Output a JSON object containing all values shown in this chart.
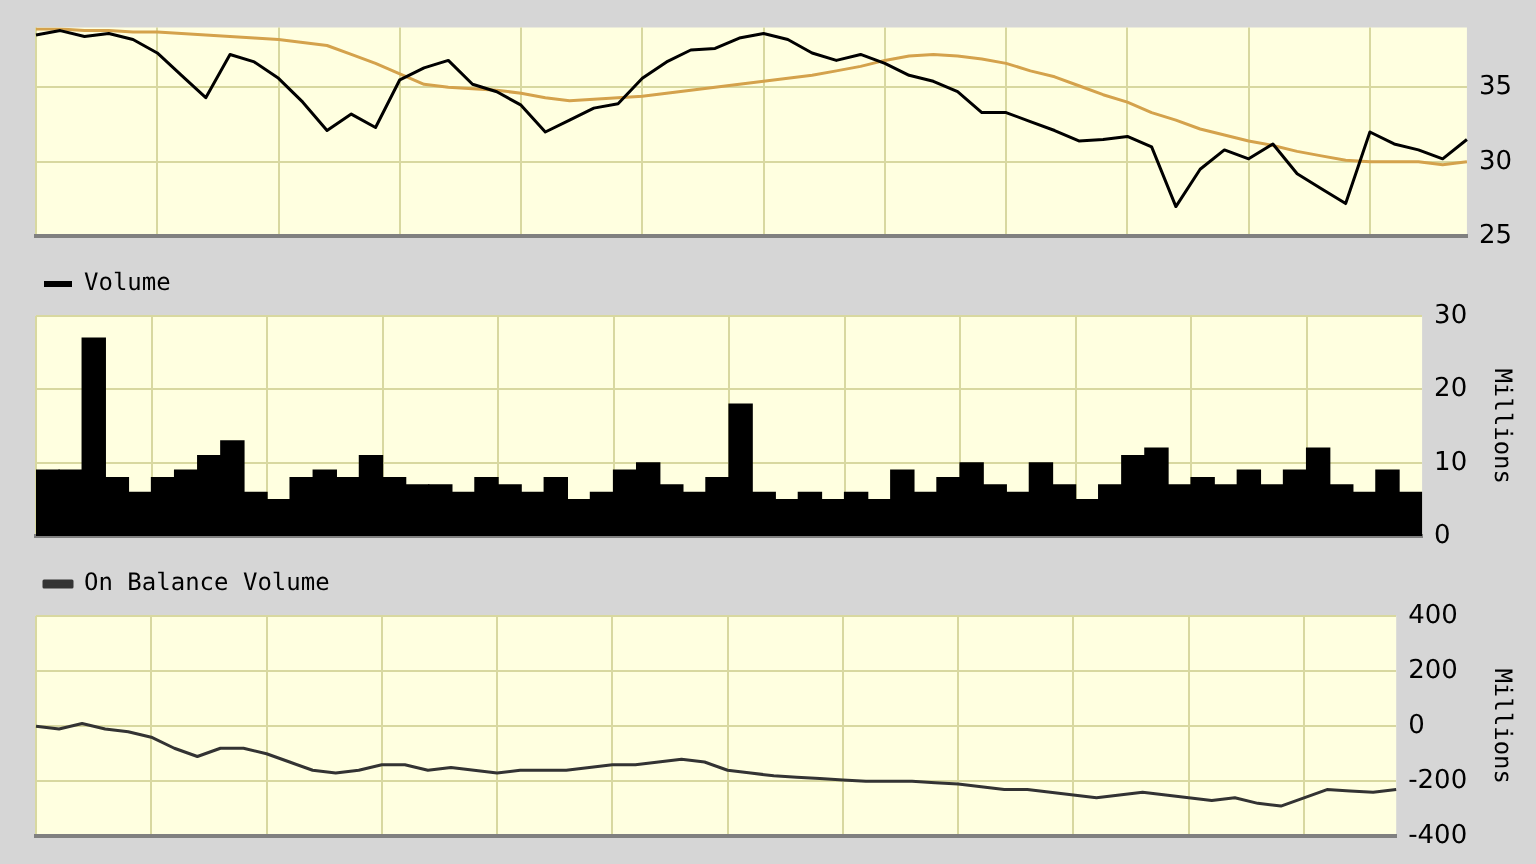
{
  "chart_data": [
    {
      "type": "line",
      "categories": [
        null,
        null,
        null,
        null,
        null,
        null,
        null,
        null,
        null,
        null,
        null,
        null,
        null,
        null,
        null,
        null,
        null,
        null,
        null,
        null,
        null,
        null,
        null,
        null,
        null,
        null,
        null,
        null,
        null,
        null,
        null,
        null,
        null,
        null,
        null,
        null,
        null,
        null,
        null,
        null,
        null,
        null,
        null,
        null,
        null,
        null,
        null,
        null,
        null,
        null,
        null,
        null,
        null,
        null,
        null,
        null,
        null,
        null,
        null,
        null
      ],
      "series": [
        {
          "color": "#000000",
          "values": [
            38.5,
            38.8,
            38.4,
            38.6,
            38.2,
            37.3,
            35.8,
            34.3,
            37.2,
            36.7,
            35.6,
            34,
            32.1,
            33.2,
            32.3,
            35.5,
            36.3,
            36.8,
            35.2,
            34.7,
            33.8,
            32,
            32.8,
            33.6,
            33.9,
            35.6,
            36.7,
            37.5,
            37.6,
            38.3,
            38.6,
            38.2,
            37.3,
            36.8,
            37.2,
            36.6,
            35.8,
            35.4,
            34.7,
            33.3,
            33.3,
            32.7,
            32.1,
            31.4,
            31.5,
            31.7,
            31,
            27,
            29.5,
            30.8,
            30.2,
            31.2,
            29.2,
            28.2,
            27.2,
            32,
            31.2,
            30.8,
            30.2,
            31.5
          ]
        },
        {
          "color": "#d4a24c",
          "values": [
            38.9,
            38.9,
            38.8,
            38.8,
            38.7,
            38.7,
            38.6,
            38.5,
            38.4,
            38.3,
            38.2,
            38.0,
            37.8,
            37.2,
            36.6,
            35.9,
            35.2,
            35,
            34.9,
            34.8,
            34.6,
            34.3,
            34.1,
            34.2,
            34.3,
            34.4,
            34.6,
            34.8,
            35,
            35.2,
            35.4,
            35.6,
            35.8,
            36.1,
            36.4,
            36.8,
            37.1,
            37.2,
            37.1,
            36.9,
            36.6,
            36.1,
            35.7,
            35.1,
            34.5,
            34,
            33.3,
            32.8,
            32.2,
            31.8,
            31.4,
            31.1,
            30.7,
            30.4,
            30.1,
            30,
            30,
            30,
            29.8,
            30
          ]
        }
      ],
      "ylim": [
        25,
        39
      ],
      "yticks": [
        25,
        30,
        35
      ],
      "grid": true,
      "tick_labels": "y",
      "legend": false
    },
    {
      "type": "bar",
      "categories": [
        null,
        null,
        null,
        null,
        null,
        null,
        null,
        null,
        null,
        null,
        null,
        null,
        null,
        null,
        null,
        null,
        null,
        null,
        null,
        null,
        null,
        null,
        null,
        null,
        null,
        null,
        null,
        null,
        null,
        null,
        null,
        null,
        null,
        null,
        null,
        null,
        null,
        null,
        null,
        null,
        null,
        null,
        null,
        null,
        null,
        null,
        null,
        null,
        null,
        null,
        null,
        null,
        null,
        null,
        null,
        null,
        null,
        null,
        null,
        null
      ],
      "series": [
        {
          "name": "Volume",
          "color": "#000000",
          "values": [
            9,
            9,
            27,
            8,
            6,
            8,
            9,
            11,
            13,
            6,
            5,
            8,
            9,
            8,
            11,
            8,
            7,
            7,
            6,
            8,
            7,
            6,
            8,
            5,
            6,
            9,
            10,
            7,
            6,
            8,
            18,
            6,
            5,
            6,
            5,
            6,
            5,
            9,
            6,
            8,
            10,
            7,
            6,
            10,
            7,
            5,
            7,
            11,
            12,
            7,
            8,
            7,
            9,
            7,
            9,
            12,
            7,
            6,
            9,
            6
          ]
        }
      ],
      "ylabel": "Millions",
      "ylim": [
        0,
        30
      ],
      "yticks": [
        0,
        10,
        20,
        30
      ],
      "grid": true,
      "tick_labels": "y",
      "legend": "top left"
    },
    {
      "type": "line",
      "categories": [
        null,
        null,
        null,
        null,
        null,
        null,
        null,
        null,
        null,
        null,
        null,
        null,
        null,
        null,
        null,
        null,
        null,
        null,
        null,
        null,
        null,
        null,
        null,
        null,
        null,
        null,
        null,
        null,
        null,
        null,
        null,
        null,
        null,
        null,
        null,
        null,
        null,
        null,
        null,
        null,
        null,
        null,
        null,
        null,
        null,
        null,
        null,
        null,
        null,
        null,
        null,
        null,
        null,
        null,
        null,
        null,
        null,
        null,
        null,
        null
      ],
      "series": [
        {
          "name": "On Balance Volume",
          "color": "#333333",
          "values": [
            0,
            -10,
            10,
            -10,
            -20,
            -40,
            -80,
            -110,
            -80,
            -80,
            -100,
            -130,
            -160,
            -170,
            -160,
            -140,
            -140,
            -160,
            -150,
            -160,
            -170,
            -160,
            -160,
            -160,
            -150,
            -140,
            -140,
            -130,
            -120,
            -130,
            -160,
            -170,
            -180,
            -185,
            -190,
            -195,
            -200,
            -200,
            -200,
            -205,
            -210,
            -220,
            -230,
            -230,
            -240,
            -250,
            -260,
            -250,
            -240,
            -250,
            -260,
            -270,
            -260,
            -280,
            -290,
            -260,
            -230,
            -235,
            -240,
            -230
          ]
        }
      ],
      "ylabel": "Millions",
      "ylim": [
        -400,
        400
      ],
      "yticks": [
        -400,
        -200,
        0,
        200,
        400
      ],
      "grid": true,
      "tick_labels": "y",
      "legend": "top left"
    }
  ]
}
